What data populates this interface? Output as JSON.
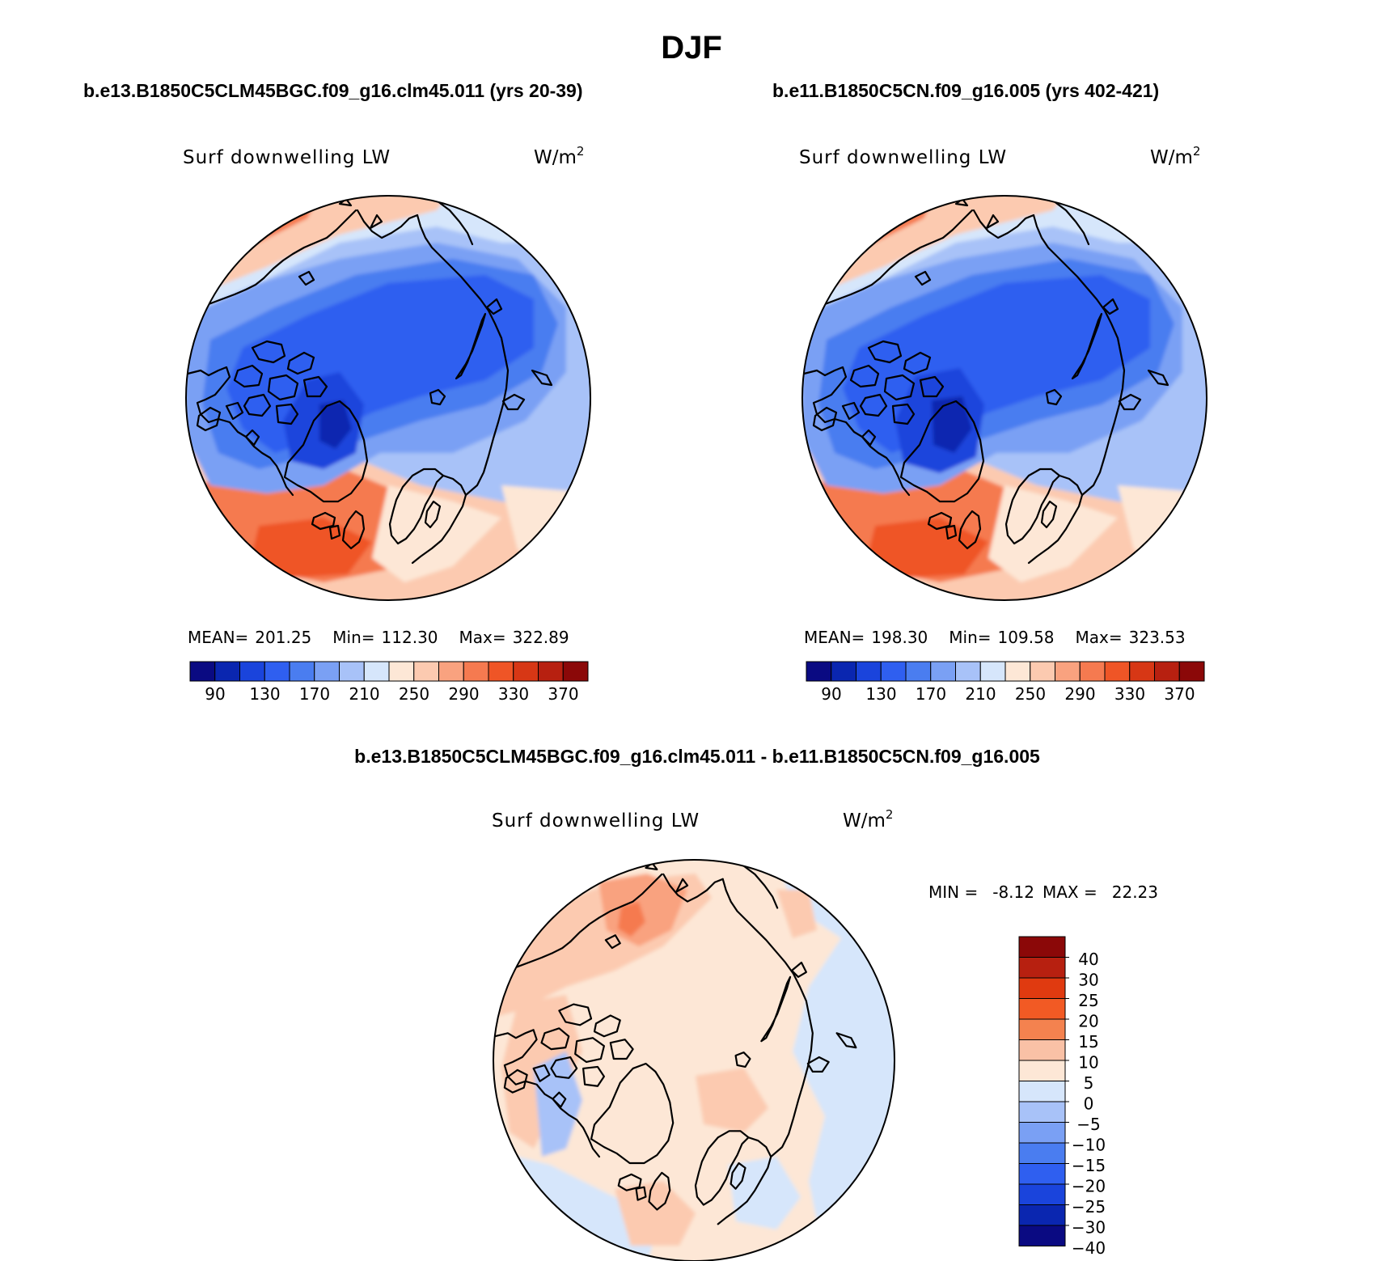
{
  "figure": {
    "title": "DJF",
    "panel_left_header": "b.e13.B1850C5CLM45BGC.f09_g16.clm45.011 (yrs 20-39)",
    "panel_right_header": "b.e11.B1850C5CN.f09_g16.005 (yrs 402-421)",
    "diff_header": "b.e13.B1850C5CLM45BGC.f09_g16.clm45.011 - b.e11.B1850C5CN.f09_g16.005"
  },
  "chart_data": [
    {
      "type": "heatmap",
      "projection": "north polar stereographic",
      "title": "b.e13.B1850C5CLM45BGC.f09_g16.clm45.011 (yrs 20-39)",
      "left_string": "Surf downwelling LW",
      "right_string": "W/m",
      "right_string_sup": "2",
      "stats": {
        "mean_label": "MEAN=",
        "mean": "201.25",
        "min_label": "Min=",
        "min": "112.30",
        "max_label": "Max=",
        "max": "322.89"
      },
      "colorbar_labels": [
        "90",
        "130",
        "170",
        "210",
        "250",
        "290",
        "330",
        "370"
      ]
    },
    {
      "type": "heatmap",
      "projection": "north polar stereographic",
      "title": "b.e11.B1850C5CN.f09_g16.005 (yrs 402-421)",
      "left_string": "Surf downwelling LW",
      "right_string": "W/m",
      "right_string_sup": "2",
      "stats": {
        "mean_label": "MEAN=",
        "mean": "198.30",
        "min_label": "Min=",
        "min": "109.58",
        "max_label": "Max=",
        "max": "323.53"
      },
      "colorbar_labels": [
        "90",
        "130",
        "170",
        "210",
        "250",
        "290",
        "330",
        "370"
      ]
    },
    {
      "type": "heatmap",
      "projection": "north polar stereographic",
      "title": "b.e13.B1850C5CLM45BGC.f09_g16.clm45.011 - b.e11.B1850C5CN.f09_g16.005",
      "left_string": "Surf downwelling LW",
      "right_string": "W/m",
      "right_string_sup": "2",
      "stats": {
        "min_label": "MIN =",
        "min": "-8.12",
        "max_label": "MAX =",
        "max": "22.23"
      },
      "colorbar_labels": [
        "40",
        "30",
        "25",
        "20",
        "15",
        "10",
        "5",
        "0",
        "−5",
        "−10",
        "−15",
        "−20",
        "−25",
        "−30",
        "−40"
      ]
    }
  ],
  "colors": {
    "abs_scale": [
      "#0a0a82",
      "#0a26b0",
      "#1a44dc",
      "#2f5ff0",
      "#4a7df0",
      "#7aa0f4",
      "#a8c2f8",
      "#d6e6fb",
      "#fde7d6",
      "#fccab0",
      "#f9a27f",
      "#f57a50",
      "#ef5526",
      "#d73715",
      "#b72010",
      "#8b0808"
    ],
    "diff_scale": [
      "#8b0808",
      "#b72010",
      "#e03a10",
      "#f25a24",
      "#f4824f",
      "#f9c1a6",
      "#fde7d6",
      "#d6e6fb",
      "#a8c2f8",
      "#7aa0f4",
      "#4a7df0",
      "#2f5ff0",
      "#1a44dc",
      "#0a26b0",
      "#0a0a82"
    ]
  }
}
